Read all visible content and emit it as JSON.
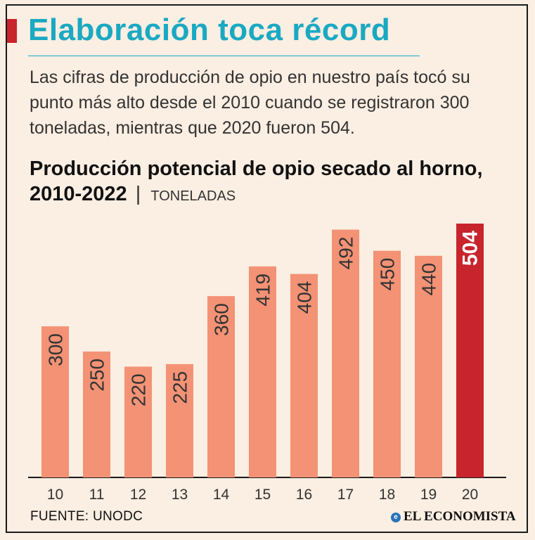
{
  "header": {
    "title": "Elaboración toca récord",
    "intro": "Las cifras de producción de opio en nuestro país tocó su punto más alto desde el 2010 cuando se registraron 300 toneladas, mientras que 2020 fueron 504."
  },
  "chart_data": {
    "type": "bar",
    "title": "Producción potencial de opio secado al horno, 2010-2022",
    "separator": "|",
    "units": "TONELADAS",
    "categories": [
      "10",
      "11",
      "12",
      "13",
      "14",
      "15",
      "16",
      "17",
      "18",
      "19",
      "20"
    ],
    "values": [
      300,
      250,
      220,
      225,
      360,
      419,
      404,
      492,
      450,
      440,
      504
    ],
    "highlight_index": 10,
    "ylim": [
      0,
      504
    ],
    "grid": false,
    "colors": {
      "bar": "#f39275",
      "highlight": "#c8242d",
      "label": "#333333",
      "highlight_label": "#ffffff"
    }
  },
  "footer": {
    "source": "FUENTE: UNODC",
    "brand": "EL ECONOMISTA",
    "brand_icon": "e-logo-icon"
  }
}
